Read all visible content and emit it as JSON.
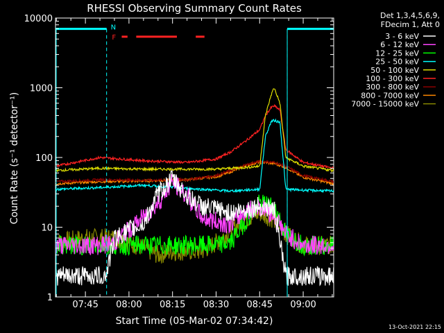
{
  "chart_data": {
    "type": "line",
    "title": "RHESSI Observing Summary Count Rates",
    "xlabel": "Start Time (05-Mar-02 07:34:42)",
    "ylabel": "Count Rate (s⁻¹ detector⁻¹)",
    "yscale": "log",
    "ylim": [
      1,
      10000
    ],
    "xlim_minutes_after_0730": [
      4.7,
      100.5
    ],
    "x_tick_labels": [
      "07:45",
      "08:00",
      "08:15",
      "08:30",
      "08:45",
      "09:00"
    ],
    "x_tick_minutes_after_0730": [
      15,
      30,
      45,
      60,
      75,
      90
    ],
    "y_tick_labels": [
      "1",
      "10",
      "100",
      "1000",
      "10000"
    ],
    "y_tick_values": [
      1,
      10,
      100,
      1000,
      10000
    ],
    "legend_header": [
      "Det 1,3,4,5,6,9,",
      "FDecim 1, Att 0"
    ],
    "legend_position": "top-right outside plot",
    "flag_labels": {
      "N": "N",
      "F": "F"
    },
    "night_intervals_minutes": [
      [
        4.7,
        22.3
      ],
      [
        84.5,
        100.5
      ]
    ],
    "night_level": 7000,
    "flare_flag_minutes": [
      [
        27.5,
        29.5
      ],
      [
        32.5,
        46.5
      ],
      [
        53,
        56
      ]
    ],
    "flare_flag_level": 5400,
    "series": [
      {
        "name": "3 - 6 keV",
        "color": "#ffffff",
        "x": [
          4.7,
          22,
          25,
          30,
          35,
          40,
          45,
          50,
          55,
          60,
          65,
          70,
          75,
          80,
          84
        ],
        "y": [
          2,
          2,
          7,
          9,
          11,
          30,
          50,
          28,
          20,
          18,
          16,
          18,
          20,
          18,
          2
        ]
      },
      {
        "name": "6 - 12 keV",
        "color": "#ff44ff",
        "x": [
          4.7,
          20,
          25,
          28,
          30,
          35,
          40,
          45,
          50,
          55,
          60,
          65,
          70,
          75,
          80,
          84,
          90,
          100.5
        ],
        "y": [
          5.5,
          5.5,
          6,
          8,
          9,
          14,
          22,
          45,
          28,
          14,
          12,
          11,
          17,
          20,
          15,
          8,
          5.5,
          5.5
        ]
      },
      {
        "name": "12 - 25 keV",
        "color": "#00ff00",
        "x": [
          4.7,
          20,
          30,
          40,
          50,
          60,
          65,
          70,
          75,
          80,
          84,
          90,
          100.5
        ],
        "y": [
          5.5,
          5.5,
          5.5,
          5.5,
          5.5,
          5.5,
          6,
          12,
          22,
          20,
          8,
          5.5,
          5.5
        ]
      },
      {
        "name": "25 - 50 keV",
        "color": "#00ffff",
        "x": [
          4.7,
          20,
          35,
          50,
          60,
          65,
          70,
          75,
          77,
          79,
          80,
          82,
          84,
          90,
          100.5
        ],
        "y": [
          35,
          37,
          40,
          36,
          34,
          33,
          34,
          35,
          200,
          330,
          340,
          320,
          35,
          34,
          33
        ]
      },
      {
        "name": "50 - 100 keV",
        "color": "#dddd00",
        "x": [
          4.7,
          20,
          35,
          50,
          60,
          65,
          70,
          75,
          77,
          79,
          80,
          82,
          84,
          90,
          100.5
        ],
        "y": [
          65,
          70,
          68,
          68,
          68,
          70,
          72,
          75,
          400,
          800,
          1000,
          600,
          100,
          75,
          65
        ]
      },
      {
        "name": "100 - 300 keV",
        "color": "#ff2222",
        "x": [
          4.7,
          20,
          35,
          50,
          60,
          65,
          70,
          75,
          77,
          79,
          80,
          82,
          84,
          90,
          100.5
        ],
        "y": [
          75,
          100,
          90,
          85,
          95,
          120,
          170,
          250,
          400,
          520,
          550,
          480,
          130,
          85,
          70
        ]
      },
      {
        "name": "300 - 800 keV",
        "color": "#8b0000",
        "x": [
          4.7,
          20,
          35,
          50,
          60,
          65,
          70,
          75,
          80,
          84,
          90,
          100.5
        ],
        "y": [
          45,
          48,
          47,
          48,
          55,
          65,
          78,
          88,
          85,
          75,
          55,
          45
        ]
      },
      {
        "name": "800 - 7000 keV",
        "color": "#ff8800",
        "x": [
          4.7,
          20,
          35,
          50,
          60,
          65,
          70,
          75,
          80,
          84,
          90,
          100.5
        ],
        "y": [
          42,
          45,
          46,
          48,
          53,
          62,
          76,
          86,
          82,
          72,
          52,
          42
        ]
      },
      {
        "name": "7000 - 15000 keV",
        "color": "#888800",
        "x": [
          4.7,
          15,
          20,
          25,
          30,
          35,
          40,
          45,
          50,
          55,
          60,
          65,
          70,
          75,
          80,
          84,
          90,
          100.5
        ],
        "y": [
          6,
          7,
          7,
          7,
          6,
          5,
          4,
          4.5,
          4.5,
          4.5,
          6,
          9,
          13,
          16,
          13,
          8,
          5.5,
          5.5
        ]
      }
    ]
  },
  "footer_stamp": "13-Oct-2021 22:15"
}
